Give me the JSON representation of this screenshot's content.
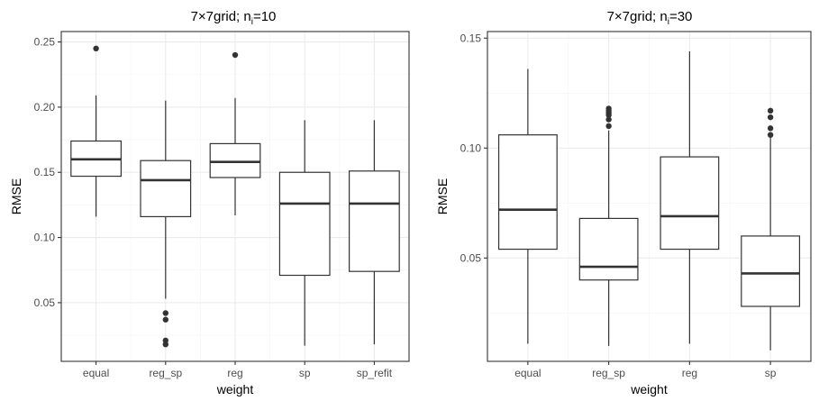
{
  "chart_data": [
    {
      "type": "box",
      "title_prefix": "7×7grid; n",
      "title_sub": "i",
      "title_suffix": "=10",
      "xlabel": "weight",
      "ylabel": "RMSE",
      "ylim": [
        0.005,
        0.258
      ],
      "yticks": [
        0.05,
        0.1,
        0.15,
        0.2,
        0.25
      ],
      "ytick_labels": [
        "0.05",
        "0.10",
        "0.15",
        "0.20",
        "0.25"
      ],
      "categories": [
        "equal",
        "reg_sp",
        "reg",
        "sp",
        "sp_refit"
      ],
      "boxes": [
        {
          "whisker_low": 0.116,
          "q1": 0.147,
          "median": 0.16,
          "q3": 0.174,
          "whisker_high": 0.209,
          "outliers": [
            0.245
          ]
        },
        {
          "whisker_low": 0.053,
          "q1": 0.116,
          "median": 0.144,
          "q3": 0.159,
          "whisker_high": 0.205,
          "outliers": [
            0.042,
            0.037,
            0.021,
            0.018
          ]
        },
        {
          "whisker_low": 0.117,
          "q1": 0.146,
          "median": 0.158,
          "q3": 0.172,
          "whisker_high": 0.207,
          "outliers": [
            0.24
          ]
        },
        {
          "whisker_low": 0.017,
          "q1": 0.071,
          "median": 0.126,
          "q3": 0.15,
          "whisker_high": 0.19,
          "outliers": []
        },
        {
          "whisker_low": 0.018,
          "q1": 0.074,
          "median": 0.126,
          "q3": 0.151,
          "whisker_high": 0.19,
          "outliers": []
        }
      ],
      "grid": true
    },
    {
      "type": "box",
      "title_prefix": "7×7grid; n",
      "title_sub": "i",
      "title_suffix": "=30",
      "xlabel": "weight",
      "ylabel": "RMSE",
      "ylim": [
        0.003,
        0.153
      ],
      "yticks": [
        0.05,
        0.1,
        0.15
      ],
      "ytick_labels": [
        "0.05",
        "0.10",
        "0.15"
      ],
      "categories": [
        "equal",
        "reg_sp",
        "reg",
        "sp"
      ],
      "boxes": [
        {
          "whisker_low": 0.011,
          "q1": 0.054,
          "median": 0.072,
          "q3": 0.106,
          "whisker_high": 0.136,
          "outliers": []
        },
        {
          "whisker_low": 0.01,
          "q1": 0.04,
          "median": 0.046,
          "q3": 0.068,
          "whisker_high": 0.108,
          "outliers": [
            0.11,
            0.113,
            0.115,
            0.116,
            0.117,
            0.118
          ]
        },
        {
          "whisker_low": 0.011,
          "q1": 0.054,
          "median": 0.069,
          "q3": 0.096,
          "whisker_high": 0.144,
          "outliers": []
        },
        {
          "whisker_low": 0.008,
          "q1": 0.028,
          "median": 0.043,
          "q3": 0.06,
          "whisker_high": 0.105,
          "outliers": [
            0.109,
            0.114,
            0.117,
            0.106
          ]
        }
      ],
      "grid": true
    }
  ]
}
